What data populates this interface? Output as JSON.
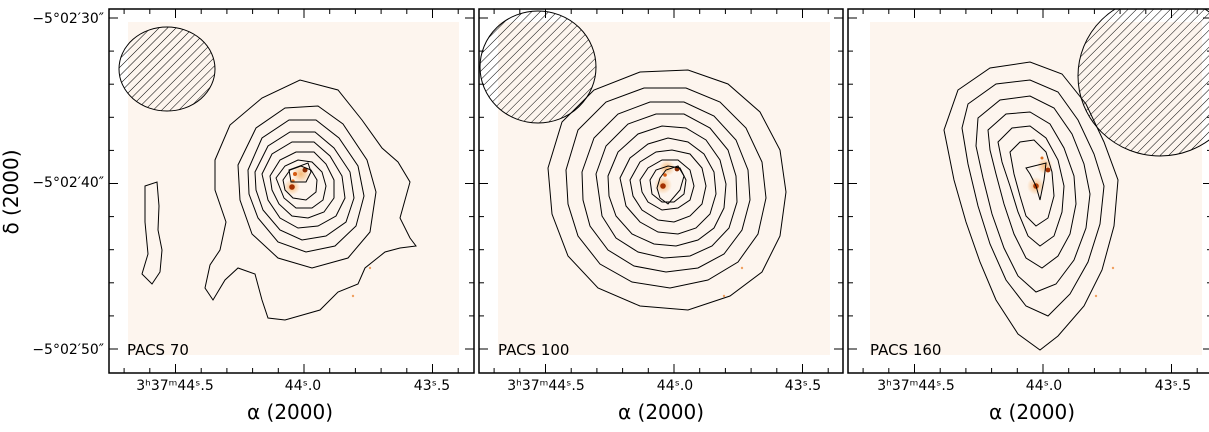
{
  "figure": {
    "ylabel": "δ (2000)",
    "y_ticks": [
      "−5°02′30″",
      "−5°02′40″",
      "−5°02′50″"
    ],
    "x_ticks": [
      "3ʰ37ᵐ44ˢ.5",
      "44ˢ.0",
      "43ˢ.5"
    ],
    "xlabel": "α (2000)"
  },
  "chart_data": [
    {
      "type": "contour",
      "panel_label": "PACS 70",
      "xlabel": "α (2000)",
      "ylabel": "δ (2000)",
      "x_ticks": [
        "3h37m44.5s",
        "44.0s",
        "43.5s"
      ],
      "y_ticks": [
        "-5°02'30\"",
        "-5°02'40\"",
        "-5°02'50\""
      ],
      "x_range_s": [
        44.76,
        43.31
      ],
      "y_range_arcsec": [
        -29.5,
        -51.5
      ],
      "beam": {
        "shape": "hatched-ellipse",
        "position": "top-left",
        "fwhm_arcsec": 5.6
      },
      "contour_levels_count": 8,
      "peak_ra_s": 44.01,
      "peak_dec_arcsec": -39.8
    },
    {
      "type": "contour",
      "panel_label": "PACS 100",
      "xlabel": "α (2000)",
      "x_ticks": [
        "3h37m44.5s",
        "44.0s",
        "43.5s"
      ],
      "x_range_s": [
        44.76,
        43.31
      ],
      "y_range_arcsec": [
        -29.5,
        -51.5
      ],
      "beam": {
        "shape": "hatched-ellipse",
        "position": "top-left",
        "fwhm_arcsec": 6.8
      },
      "contour_levels_count": 9,
      "peak_ra_s": 44.01,
      "peak_dec_arcsec": -39.8
    },
    {
      "type": "contour",
      "panel_label": "PACS 160",
      "xlabel": "α (2000)",
      "x_ticks": [
        "3h37m44.5s",
        "44.0s",
        "43.5s"
      ],
      "x_range_s": [
        44.76,
        43.31
      ],
      "y_range_arcsec": [
        -29.5,
        -51.5
      ],
      "beam": {
        "shape": "hatched-ellipse",
        "position": "top-right",
        "fwhm_arcsec": 11.4
      },
      "contour_levels_count": 6,
      "peak_ra_s": 44.02,
      "peak_dec_arcsec": -40.0
    }
  ],
  "colors": {
    "background_image": "#fdf5ee",
    "source_core": "#a33000",
    "source_glow": "#f2a050",
    "contour": "#000000"
  }
}
